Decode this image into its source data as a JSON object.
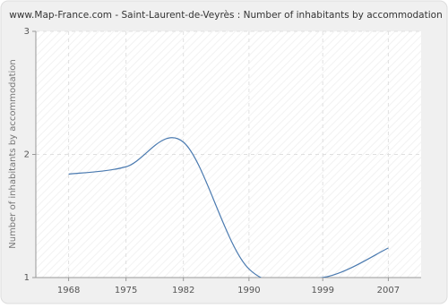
{
  "chart_data": {
    "type": "line",
    "title": "www.Map-France.com - Saint-Laurent-de-Veyrès : Number of inhabitants by accommodation",
    "y_label": "Number of inhabitants by accommodation",
    "x": [
      1968,
      1975,
      1982,
      1990,
      1999,
      2007
    ],
    "series": [
      {
        "name": "Number of inhabitants by accommodation",
        "color": "#4a7ab0",
        "values": [
          1.84,
          1.9,
          2.1,
          1.07,
          1.0,
          1.24
        ]
      }
    ],
    "xlim": [
      1964,
      2011
    ],
    "xticks": [
      1968,
      1975,
      1982,
      1990,
      1999,
      2007
    ],
    "ylim": [
      1,
      3
    ],
    "yticks": [
      1,
      2,
      3
    ],
    "grid": true
  }
}
